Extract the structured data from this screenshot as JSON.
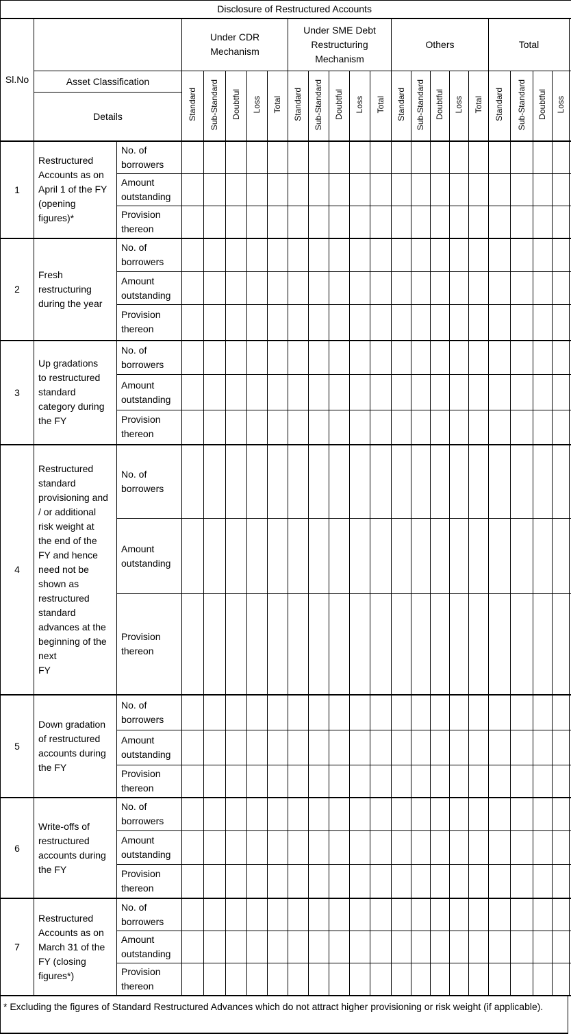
{
  "title": "Disclosure of Restructured Accounts",
  "header": {
    "slno": "Sl.No",
    "asset_classification": "Asset Classification",
    "details": "Details",
    "groups": [
      {
        "label": "Under CDR Mechanism",
        "columns": [
          "Standard",
          "Sub-Standard",
          "Doubtful",
          "Loss",
          "Total"
        ]
      },
      {
        "label": "Under SME Debt Restructuring Mechanism",
        "columns": [
          "Standard",
          "Sub-Standard",
          "Doubtful",
          "Loss",
          "Total"
        ]
      },
      {
        "label": "Others",
        "columns": [
          "Standard",
          "Sub-Standard",
          "Doubtful",
          "Loss",
          "Total"
        ]
      },
      {
        "label": "Total",
        "columns": [
          "Standard",
          "Sub-Standard",
          "Doubtful",
          "Loss"
        ]
      }
    ]
  },
  "rows": [
    {
      "no": "1",
      "label": "Restructured\nAccounts as on\nApril 1 of the FY\n(opening\nfigures)*",
      "details": [
        "No. of\nborrowers",
        "Amount\noutstanding",
        "Provision\nthereon"
      ]
    },
    {
      "no": "2",
      "label": "Fresh\nrestructuring\nduring the year",
      "details": [
        "No. of\nborrowers",
        "Amount\noutstanding",
        "Provision\nthereon"
      ]
    },
    {
      "no": "3",
      "label": "Up gradations\nto restructured\nstandard\ncategory during\nthe FY",
      "details": [
        "No. of\nborrowers",
        "Amount\noutstanding",
        "Provision\nthereon"
      ]
    },
    {
      "no": "4",
      "label": "Restructured\nstandard\nprovisioning and\n/ or additional\nrisk weight at\nthe end of the\nFY and hence\nneed not be\nshown as\nrestructured\nstandard\nadvances at the\nbeginning of the\nnext\nFY",
      "details": [
        "No. of\nborrowers",
        "Amount\noutstanding",
        "Provision\nthereon"
      ]
    },
    {
      "no": "5",
      "label": "Down gradation\nof restructured\naccounts during\nthe FY",
      "details": [
        "No. of\nborrowers",
        "Amount\noutstanding",
        "Provision\nthereon"
      ]
    },
    {
      "no": "6",
      "label": "Write-offs of\nrestructured\naccounts during\nthe FY",
      "details": [
        "No. of\nborrowers",
        "Amount\noutstanding",
        "Provision\nthereon"
      ]
    },
    {
      "no": "7",
      "label": "Restructured\nAccounts as on\nMarch 31 of the\nFY (closing\nfigures*)",
      "details": [
        "No. of\nborrowers",
        "Amount\noutstanding",
        "Provision\nthereon"
      ]
    }
  ],
  "footnote": "* Excluding the figures of Standard Restructured Advances which do not attract higher provisioning or risk weight (if applicable)."
}
